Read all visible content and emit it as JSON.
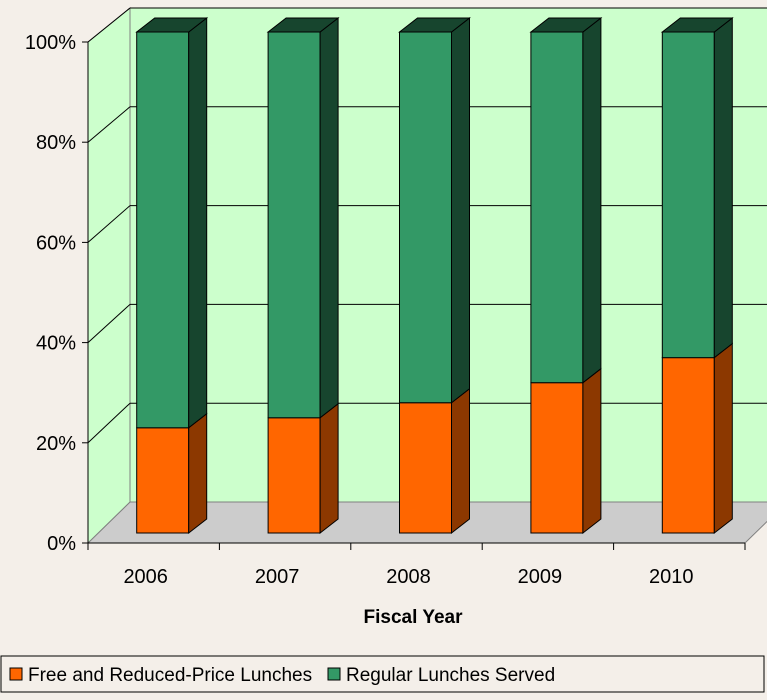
{
  "chart_data": {
    "type": "bar",
    "stacked": true,
    "percent_stacked": true,
    "three_d": true,
    "title": "",
    "xlabel": "Fiscal Year",
    "ylabel": "",
    "categories": [
      "2006",
      "2007",
      "2008",
      "2009",
      "2010"
    ],
    "ylim": [
      0,
      100
    ],
    "yticks": [
      0,
      20,
      40,
      60,
      80,
      100
    ],
    "ytick_labels": [
      "0%",
      "20%",
      "40%",
      "60%",
      "80%",
      "100%"
    ],
    "grid": true,
    "legend_position": "bottom",
    "series": [
      {
        "name": "Free and Reduced-Price Lunches",
        "values": [
          21,
          23,
          26,
          30,
          35
        ],
        "color": "#ff6600"
      },
      {
        "name": "Regular Lunches Served",
        "values": [
          79,
          77,
          74,
          70,
          65
        ],
        "color": "#339966"
      }
    ],
    "colors": {
      "plot_background": "#ccffcc",
      "floor": "#cccccc",
      "page_background": "#f4efe9"
    }
  }
}
